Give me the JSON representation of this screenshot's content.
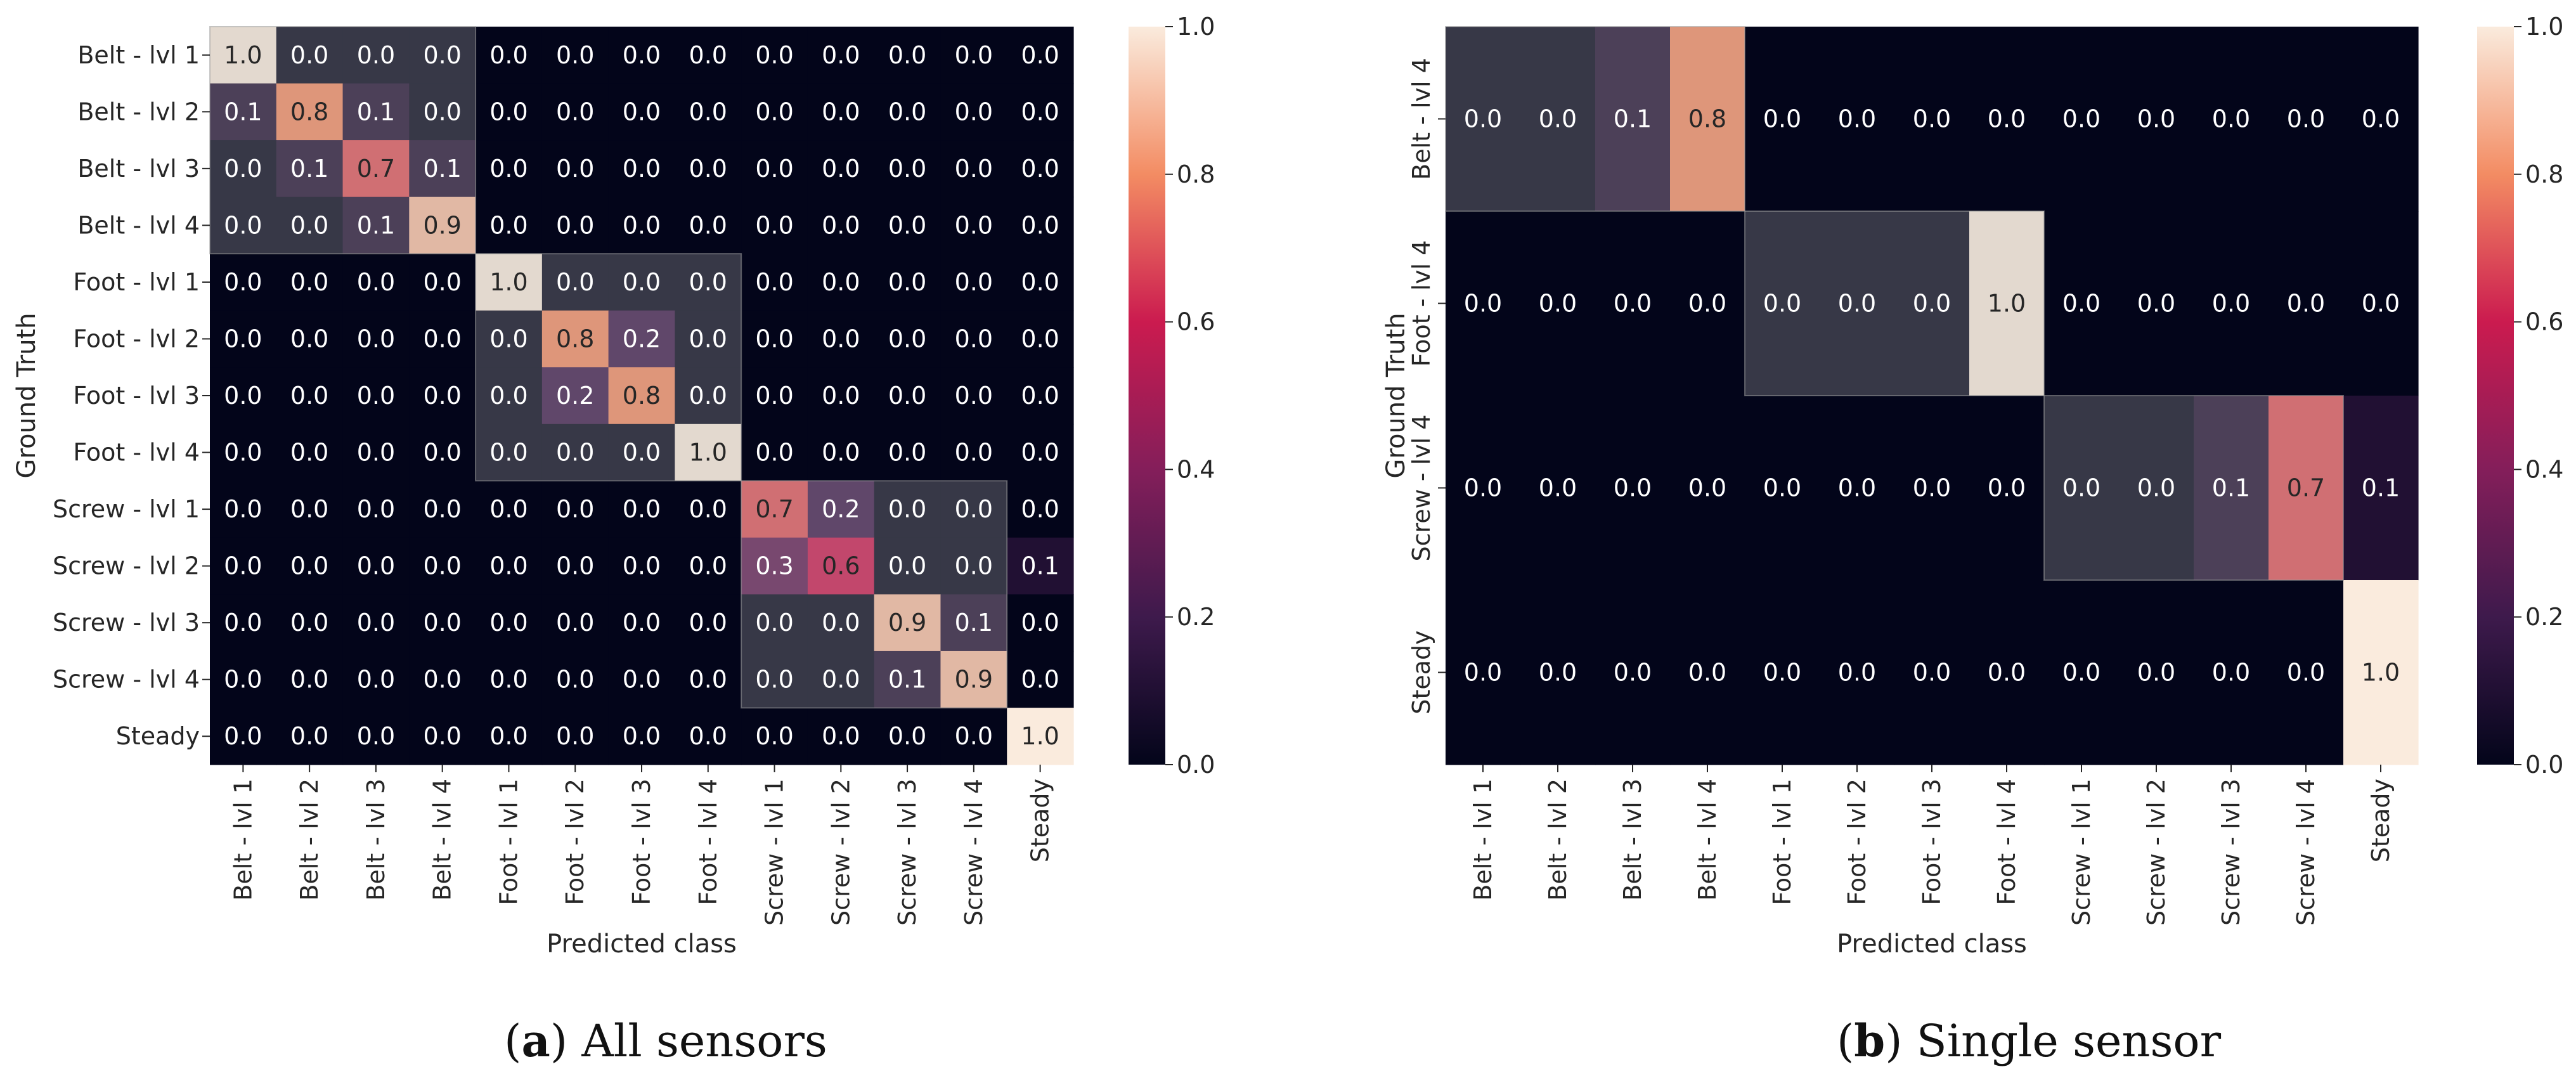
{
  "chart_data": [
    {
      "type": "heatmap",
      "id": "a",
      "title": "",
      "xlabel": "Predicted class",
      "ylabel": "Ground Truth",
      "x_categories": [
        "Belt - lvl 1",
        "Belt - lvl 2",
        "Belt - lvl 3",
        "Belt - lvl 4",
        "Foot - lvl 1",
        "Foot - lvl 2",
        "Foot - lvl 3",
        "Foot - lvl 4",
        "Screw - lvl 1",
        "Screw - lvl 2",
        "Screw - lvl 3",
        "Screw - lvl 4",
        "Steady"
      ],
      "y_categories": [
        "Belt - lvl 1",
        "Belt - lvl 2",
        "Belt - lvl 3",
        "Belt - lvl 4",
        "Foot - lvl 1",
        "Foot - lvl 2",
        "Foot - lvl 3",
        "Foot - lvl 4",
        "Screw - lvl 1",
        "Screw - lvl 2",
        "Screw - lvl 3",
        "Screw - lvl 4",
        "Steady"
      ],
      "values": [
        [
          1.0,
          0.0,
          0.0,
          0.0,
          0.0,
          0.0,
          0.0,
          0.0,
          0.0,
          0.0,
          0.0,
          0.0,
          0.0
        ],
        [
          0.1,
          0.8,
          0.1,
          0.0,
          0.0,
          0.0,
          0.0,
          0.0,
          0.0,
          0.0,
          0.0,
          0.0,
          0.0
        ],
        [
          0.0,
          0.1,
          0.7,
          0.1,
          0.0,
          0.0,
          0.0,
          0.0,
          0.0,
          0.0,
          0.0,
          0.0,
          0.0
        ],
        [
          0.0,
          0.0,
          0.1,
          0.9,
          0.0,
          0.0,
          0.0,
          0.0,
          0.0,
          0.0,
          0.0,
          0.0,
          0.0
        ],
        [
          0.0,
          0.0,
          0.0,
          0.0,
          1.0,
          0.0,
          0.0,
          0.0,
          0.0,
          0.0,
          0.0,
          0.0,
          0.0
        ],
        [
          0.0,
          0.0,
          0.0,
          0.0,
          0.0,
          0.8,
          0.2,
          0.0,
          0.0,
          0.0,
          0.0,
          0.0,
          0.0
        ],
        [
          0.0,
          0.0,
          0.0,
          0.0,
          0.0,
          0.2,
          0.8,
          0.0,
          0.0,
          0.0,
          0.0,
          0.0,
          0.0
        ],
        [
          0.0,
          0.0,
          0.0,
          0.0,
          0.0,
          0.0,
          0.0,
          1.0,
          0.0,
          0.0,
          0.0,
          0.0,
          0.0
        ],
        [
          0.0,
          0.0,
          0.0,
          0.0,
          0.0,
          0.0,
          0.0,
          0.0,
          0.7,
          0.2,
          0.0,
          0.0,
          0.0
        ],
        [
          0.0,
          0.0,
          0.0,
          0.0,
          0.0,
          0.0,
          0.0,
          0.0,
          0.3,
          0.6,
          0.0,
          0.0,
          0.1
        ],
        [
          0.0,
          0.0,
          0.0,
          0.0,
          0.0,
          0.0,
          0.0,
          0.0,
          0.0,
          0.0,
          0.9,
          0.1,
          0.0
        ],
        [
          0.0,
          0.0,
          0.0,
          0.0,
          0.0,
          0.0,
          0.0,
          0.0,
          0.0,
          0.0,
          0.1,
          0.9,
          0.0
        ],
        [
          0.0,
          0.0,
          0.0,
          0.0,
          0.0,
          0.0,
          0.0,
          0.0,
          0.0,
          0.0,
          0.0,
          0.0,
          1.0
        ]
      ],
      "shaded_blocks": [
        {
          "rows": [
            0,
            3
          ],
          "cols": [
            0,
            3
          ]
        },
        {
          "rows": [
            4,
            7
          ],
          "cols": [
            4,
            7
          ]
        },
        {
          "rows": [
            8,
            11
          ],
          "cols": [
            8,
            11
          ]
        }
      ],
      "colorbar": {
        "range": [
          0.0,
          1.0
        ],
        "ticks": [
          "0.0",
          "0.2",
          "0.4",
          "0.6",
          "0.8",
          "1.0"
        ],
        "colormap": "rocket"
      },
      "caption_label": "a",
      "caption_text": "All sensors"
    },
    {
      "type": "heatmap",
      "id": "b",
      "title": "",
      "xlabel": "Predicted class",
      "ylabel": "Ground Truth",
      "x_categories": [
        "Belt - lvl 1",
        "Belt - lvl 2",
        "Belt - lvl 3",
        "Belt - lvl 4",
        "Foot - lvl 1",
        "Foot - lvl 2",
        "Foot - lvl 3",
        "Foot - lvl 4",
        "Screw - lvl 1",
        "Screw - lvl 2",
        "Screw - lvl 3",
        "Screw - lvl 4",
        "Steady"
      ],
      "y_categories": [
        "Belt - lvl 4",
        "Foot - lvl 4",
        "Screw - lvl 4",
        "Steady"
      ],
      "values": [
        [
          0.0,
          0.0,
          0.1,
          0.8,
          0.0,
          0.0,
          0.0,
          0.0,
          0.0,
          0.0,
          0.0,
          0.0,
          0.0
        ],
        [
          0.0,
          0.0,
          0.0,
          0.0,
          0.0,
          0.0,
          0.0,
          1.0,
          0.0,
          0.0,
          0.0,
          0.0,
          0.0
        ],
        [
          0.0,
          0.0,
          0.0,
          0.0,
          0.0,
          0.0,
          0.0,
          0.0,
          0.0,
          0.0,
          0.1,
          0.7,
          0.1
        ],
        [
          0.0,
          0.0,
          0.0,
          0.0,
          0.0,
          0.0,
          0.0,
          0.0,
          0.0,
          0.0,
          0.0,
          0.0,
          1.0
        ]
      ],
      "shaded_blocks": [
        {
          "rows": [
            0,
            0
          ],
          "cols": [
            0,
            3
          ]
        },
        {
          "rows": [
            1,
            1
          ],
          "cols": [
            4,
            7
          ]
        },
        {
          "rows": [
            2,
            2
          ],
          "cols": [
            8,
            11
          ]
        }
      ],
      "colorbar": {
        "range": [
          0.0,
          1.0
        ],
        "ticks": [
          "0.0",
          "0.2",
          "0.4",
          "0.6",
          "0.8",
          "1.0"
        ],
        "colormap": "rocket"
      },
      "caption_label": "b",
      "caption_text": "Single sensor"
    }
  ]
}
